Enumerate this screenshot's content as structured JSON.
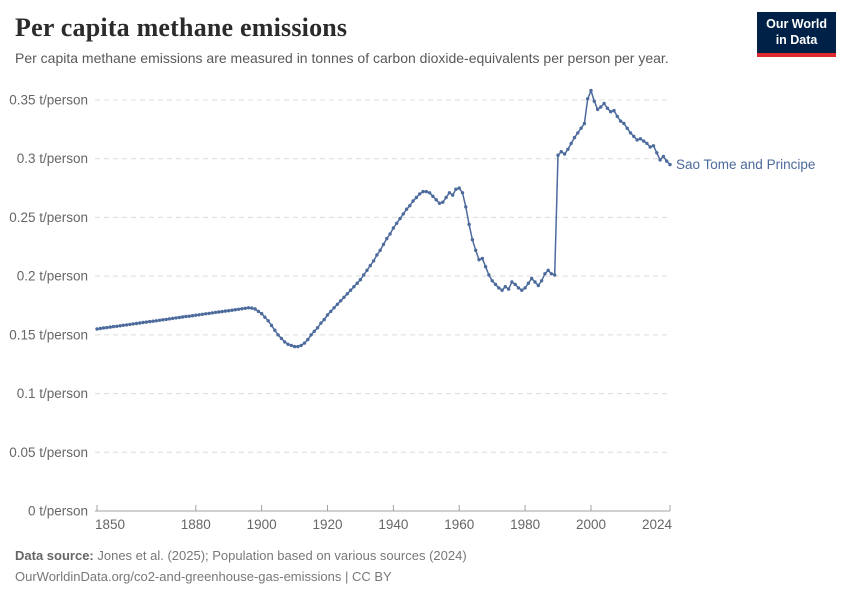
{
  "header": {
    "title": "Per capita methane emissions",
    "subtitle": "Per capita methane emissions are measured in tonnes of carbon dioxide-equivalents per person per year.",
    "logo": {
      "line1": "Our World",
      "line2": "in Data",
      "bg_color": "#002147",
      "accent_color": "#dc2a2e"
    }
  },
  "chart_data": {
    "type": "line",
    "title": "Per capita methane emissions",
    "unit": "t/person",
    "x_start": 1850,
    "x_end": 2024,
    "x_ticks": [
      1850,
      1880,
      1900,
      1920,
      1940,
      1960,
      1980,
      2000,
      2024
    ],
    "y_ticks": [
      0,
      0.05,
      0.1,
      0.15,
      0.2,
      0.25,
      0.3,
      0.35
    ],
    "y_tick_suffix": " t/person",
    "ylim": [
      0,
      0.35
    ],
    "grid": true,
    "legend_position": "end-of-line-label",
    "line_color": "#4C6A9C",
    "series": [
      {
        "name": "Sao Tome and Principe",
        "start_year": 1850,
        "values": [
          0.155,
          0.1554,
          0.1558,
          0.1562,
          0.1566,
          0.157,
          0.1573,
          0.1577,
          0.1581,
          0.1585,
          0.1589,
          0.1593,
          0.1597,
          0.1601,
          0.1605,
          0.1609,
          0.1613,
          0.1616,
          0.162,
          0.1624,
          0.1628,
          0.1632,
          0.1636,
          0.164,
          0.1644,
          0.1648,
          0.1652,
          0.1656,
          0.1659,
          0.1663,
          0.1667,
          0.1671,
          0.1675,
          0.1679,
          0.1683,
          0.1687,
          0.1691,
          0.1695,
          0.1698,
          0.1702,
          0.1706,
          0.171,
          0.1714,
          0.1718,
          0.1722,
          0.1726,
          0.173,
          0.1728,
          0.172,
          0.17,
          0.168,
          0.165,
          0.162,
          0.158,
          0.154,
          0.15,
          0.147,
          0.144,
          0.142,
          0.141,
          0.14,
          0.14,
          0.141,
          0.143,
          0.146,
          0.15,
          0.153,
          0.156,
          0.16,
          0.163,
          0.167,
          0.17,
          0.173,
          0.176,
          0.179,
          0.182,
          0.185,
          0.188,
          0.191,
          0.194,
          0.197,
          0.201,
          0.205,
          0.209,
          0.213,
          0.218,
          0.222,
          0.227,
          0.232,
          0.236,
          0.241,
          0.245,
          0.249,
          0.253,
          0.257,
          0.26,
          0.264,
          0.267,
          0.27,
          0.272,
          0.272,
          0.271,
          0.268,
          0.265,
          0.262,
          0.263,
          0.267,
          0.271,
          0.269,
          0.274,
          0.275,
          0.271,
          0.259,
          0.244,
          0.231,
          0.222,
          0.214,
          0.215,
          0.208,
          0.201,
          0.196,
          0.193,
          0.19,
          0.188,
          0.191,
          0.189,
          0.195,
          0.193,
          0.19,
          0.188,
          0.19,
          0.194,
          0.198,
          0.195,
          0.192,
          0.196,
          0.202,
          0.205,
          0.202,
          0.201,
          0.303,
          0.306,
          0.304,
          0.308,
          0.313,
          0.318,
          0.322,
          0.326,
          0.33,
          0.351,
          0.358,
          0.349,
          0.342,
          0.344,
          0.347,
          0.343,
          0.34,
          0.341,
          0.336,
          0.332,
          0.33,
          0.326,
          0.322,
          0.319,
          0.316,
          0.317,
          0.315,
          0.313,
          0.31,
          0.311,
          0.305,
          0.299,
          0.302,
          0.298,
          0.295
        ]
      }
    ]
  },
  "footer": {
    "source_label": "Data source:",
    "source_text": " Jones et al. (2025); Population based on various sources (2024)",
    "url_line": "OurWorldinData.org/co2-and-greenhouse-gas-emissions | CC BY"
  }
}
